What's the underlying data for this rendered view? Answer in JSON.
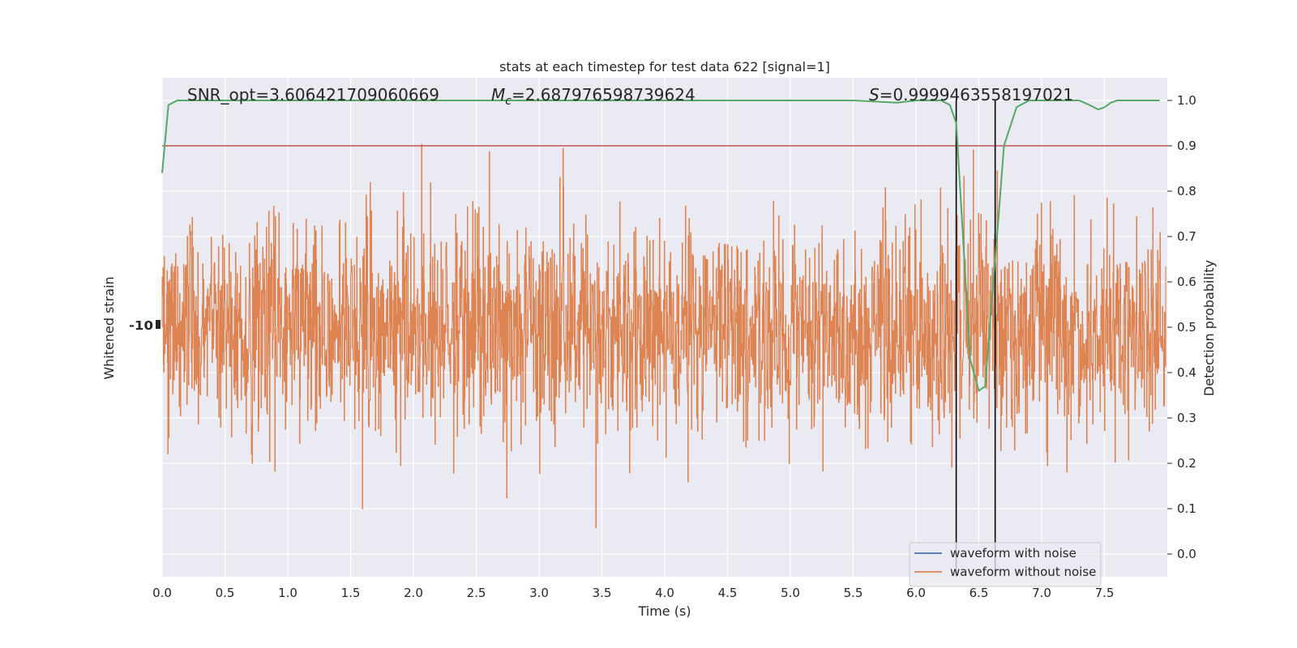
{
  "chart_data": {
    "type": "line",
    "title": "stats at each timestep for test data 622 [signal=1]",
    "xlabel": "Time (s)",
    "ylabel_left": "Whitened strain",
    "ylabel_right": "Detection probability",
    "xlim": [
      0.0,
      8.0
    ],
    "ylim_right": [
      -0.05,
      1.05
    ],
    "x_ticks": [
      "0.0",
      "0.5",
      "1.0",
      "1.5",
      "2.0",
      "2.5",
      "3.0",
      "3.5",
      "4.0",
      "4.5",
      "5.0",
      "5.5",
      "6.0",
      "6.5",
      "7.0",
      "7.5"
    ],
    "y_ticks_right": [
      "0.0",
      "0.1",
      "0.2",
      "0.3",
      "0.4",
      "0.5",
      "0.6",
      "0.7",
      "0.8",
      "0.9",
      "1.0"
    ],
    "left_tick_label": "-10",
    "grid": true,
    "legend_position": "bottom-right",
    "annotations": {
      "snr": "SNR_opt=3.606421709060669",
      "mc_symbol": "M",
      "mc_sub": "c",
      "mc_value": "=2.687976598739624",
      "s_symbol": "S",
      "s_value": "=0.9999463558197021"
    },
    "threshold": 0.9,
    "vertical_lines_x": [
      6.32,
      6.63
    ],
    "series": [
      {
        "name": "waveform with noise",
        "color": "#4c72b0",
        "style": "line"
      },
      {
        "name": "waveform without noise",
        "color": "#dd8452",
        "style": "dense-noise"
      }
    ],
    "detection_probability": {
      "color": "#55a868",
      "x": [
        0.0,
        0.05,
        0.12,
        0.25,
        0.5,
        1.0,
        1.5,
        2.0,
        2.5,
        3.0,
        3.5,
        4.0,
        4.5,
        5.0,
        5.5,
        5.85,
        6.0,
        6.1,
        6.2,
        6.27,
        6.32,
        6.37,
        6.43,
        6.5,
        6.55,
        6.6,
        6.65,
        6.7,
        6.8,
        6.9,
        7.0,
        7.1,
        7.2,
        7.3,
        7.38,
        7.45,
        7.5,
        7.55,
        7.6,
        7.7,
        7.94
      ],
      "y": [
        0.84,
        0.99,
        1.0,
        1.0,
        1.0,
        1.0,
        1.0,
        1.0,
        1.0,
        1.0,
        1.0,
        1.0,
        1.0,
        1.0,
        1.0,
        0.995,
        1.0,
        1.0,
        1.0,
        0.99,
        0.95,
        0.72,
        0.43,
        0.36,
        0.37,
        0.55,
        0.72,
        0.9,
        0.985,
        1.0,
        1.0,
        1.0,
        1.0,
        1.0,
        0.99,
        0.98,
        0.985,
        0.995,
        1.0,
        1.0,
        1.0
      ]
    },
    "threshold_color": "#c44e52"
  }
}
